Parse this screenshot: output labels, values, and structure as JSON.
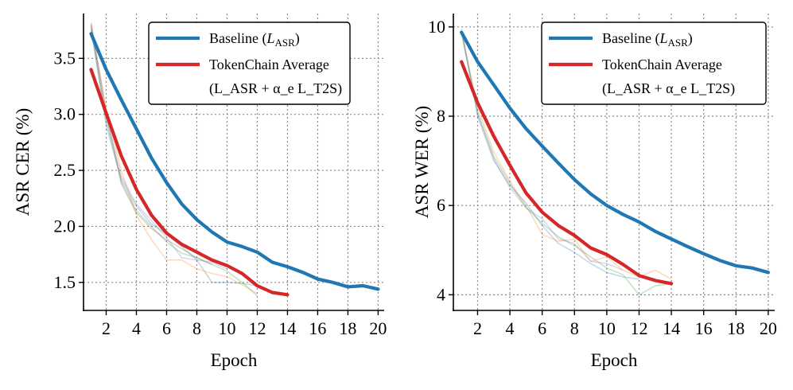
{
  "chart_data": [
    {
      "type": "line",
      "title": "",
      "xlabel": "Epoch",
      "ylabel": "ASR CER (%)",
      "xlim": [
        0.5,
        20.4
      ],
      "ylim": [
        1.25,
        3.9
      ],
      "xticks": [
        "2",
        "4",
        "6",
        "8",
        "10",
        "12",
        "14",
        "16",
        "18",
        "20"
      ],
      "xtick_values": [
        2,
        4,
        6,
        8,
        10,
        12,
        14,
        16,
        18,
        20
      ],
      "yticks": [
        "1.5",
        "2.0",
        "2.5",
        "3.0",
        "3.5"
      ],
      "ytick_values": [
        1.5,
        2.0,
        2.5,
        3.0,
        3.5
      ],
      "grid": true,
      "legend_position": "top-right",
      "series": [
        {
          "name": "Baseline (L_ASR)",
          "legend_main": "Baseline (",
          "legend_sym": "L",
          "legend_sub": "ASR",
          "legend_close": ")",
          "color": "#1f77b4",
          "x": [
            1,
            2,
            3,
            4,
            5,
            6,
            7,
            8,
            9,
            10,
            11,
            12,
            13,
            14,
            15,
            16,
            17,
            18,
            19,
            20
          ],
          "values": [
            3.72,
            3.4,
            3.13,
            2.87,
            2.61,
            2.39,
            2.2,
            2.06,
            1.95,
            1.86,
            1.82,
            1.77,
            1.68,
            1.64,
            1.59,
            1.53,
            1.5,
            1.46,
            1.47,
            1.44
          ]
        },
        {
          "name": "TokenChain Average (L_ASR + α_e L_T2S)",
          "legend_main": "TokenChain Average",
          "legend_line2": "(L_ASR + α_e L_T2S)",
          "color": "#d62728",
          "x": [
            1,
            2,
            3,
            4,
            5,
            6,
            7,
            8,
            9,
            10,
            11,
            12,
            13,
            14
          ],
          "values": [
            3.4,
            3.01,
            2.63,
            2.33,
            2.1,
            1.94,
            1.84,
            1.77,
            1.7,
            1.65,
            1.58,
            1.47,
            1.41,
            1.39
          ]
        }
      ],
      "faint_series": [
        {
          "color": "#1f77b4",
          "x": [
            1,
            2,
            3,
            4,
            5,
            6,
            7,
            8,
            9,
            10,
            11,
            12
          ],
          "values": [
            3.78,
            2.9,
            2.42,
            2.18,
            2.02,
            1.93,
            1.82,
            1.7,
            1.5,
            1.5,
            1.49,
            1.47
          ]
        },
        {
          "color": "#ff7f0e",
          "x": [
            1,
            2,
            3,
            4,
            5,
            6,
            7,
            8,
            9,
            10,
            11,
            12
          ],
          "values": [
            3.8,
            3.05,
            2.5,
            2.1,
            1.88,
            1.7,
            1.7,
            1.62,
            1.58,
            1.55,
            1.48,
            1.4
          ]
        },
        {
          "color": "#2ca02c",
          "x": [
            1,
            2,
            3,
            4,
            5,
            6,
            7,
            8,
            9,
            10,
            11,
            12
          ],
          "values": [
            3.76,
            2.95,
            2.4,
            2.14,
            2.0,
            1.86,
            1.76,
            1.72,
            1.66,
            1.6,
            1.5,
            1.38
          ]
        },
        {
          "color": "#9467bd",
          "x": [
            1,
            2,
            3,
            4,
            5,
            6,
            7,
            8,
            9,
            10
          ],
          "values": [
            3.8,
            2.98,
            2.45,
            2.2,
            2.05,
            1.9,
            1.72,
            1.7,
            1.68,
            1.62
          ]
        },
        {
          "color": "#8c564b",
          "x": [
            1,
            2,
            3,
            4,
            5,
            6,
            7,
            8,
            9
          ],
          "values": [
            3.82,
            3.02,
            2.38,
            2.12,
            1.98,
            1.88,
            1.8,
            1.72,
            1.66
          ]
        }
      ]
    },
    {
      "type": "line",
      "title": "",
      "xlabel": "Epoch",
      "ylabel": "ASR WER (%)",
      "xlim": [
        0.5,
        20.4
      ],
      "ylim": [
        3.65,
        10.3
      ],
      "xticks": [
        "2",
        "4",
        "6",
        "8",
        "10",
        "12",
        "14",
        "16",
        "18",
        "20"
      ],
      "xtick_values": [
        2,
        4,
        6,
        8,
        10,
        12,
        14,
        16,
        18,
        20
      ],
      "yticks": [
        "4",
        "6",
        "8",
        "10"
      ],
      "ytick_values": [
        4,
        6,
        8,
        10
      ],
      "grid": true,
      "legend_position": "top-right",
      "series": [
        {
          "name": "Baseline (L_ASR)",
          "legend_main": "Baseline (",
          "legend_sym": "L",
          "legend_sub": "ASR",
          "legend_close": ")",
          "color": "#1f77b4",
          "x": [
            1,
            2,
            3,
            4,
            5,
            6,
            7,
            8,
            9,
            10,
            11,
            12,
            13,
            14,
            15,
            16,
            17,
            18,
            19,
            20
          ],
          "values": [
            9.88,
            9.22,
            8.7,
            8.18,
            7.72,
            7.33,
            6.95,
            6.58,
            6.26,
            6.0,
            5.8,
            5.63,
            5.42,
            5.25,
            5.08,
            4.92,
            4.77,
            4.65,
            4.6,
            4.5
          ]
        },
        {
          "name": "TokenChain Average (L_ASR + α_e L_T2S)",
          "legend_main": "TokenChain Average",
          "legend_line2": "(L_ASR + α_e L_T2S)",
          "color": "#d62728",
          "x": [
            1,
            2,
            3,
            4,
            5,
            6,
            7,
            8,
            9,
            10,
            11,
            12,
            13,
            14
          ],
          "values": [
            9.22,
            8.3,
            7.55,
            6.9,
            6.28,
            5.85,
            5.55,
            5.33,
            5.05,
            4.9,
            4.68,
            4.43,
            4.32,
            4.25
          ]
        }
      ],
      "faint_series": [
        {
          "color": "#1f77b4",
          "x": [
            1,
            2,
            3,
            4,
            5,
            6,
            7,
            8,
            9,
            10,
            11,
            12
          ],
          "values": [
            9.95,
            8.0,
            7.0,
            6.45,
            6.05,
            5.55,
            5.15,
            4.95,
            4.7,
            4.5,
            4.4,
            4.35
          ]
        },
        {
          "color": "#ff7f0e",
          "x": [
            1,
            2,
            3,
            4,
            5,
            6,
            7,
            8,
            9,
            10,
            11,
            12,
            13,
            14
          ],
          "values": [
            9.9,
            8.2,
            7.2,
            6.55,
            6.0,
            5.35,
            5.2,
            5.25,
            4.75,
            4.85,
            4.55,
            4.4,
            4.55,
            4.35
          ]
        },
        {
          "color": "#2ca02c",
          "x": [
            1,
            2,
            3,
            4,
            5,
            6,
            7,
            8,
            9,
            10,
            11,
            12,
            13,
            14
          ],
          "values": [
            9.85,
            8.1,
            7.1,
            6.5,
            5.95,
            5.6,
            5.3,
            5.1,
            4.85,
            4.6,
            4.45,
            4.0,
            4.2,
            4.25
          ]
        },
        {
          "color": "#9467bd",
          "x": [
            1,
            2,
            3,
            4,
            5,
            6,
            7,
            8,
            9,
            10,
            11
          ],
          "values": [
            9.92,
            8.05,
            7.05,
            6.4,
            5.95,
            5.7,
            5.25,
            5.15,
            4.75,
            4.7,
            4.55
          ]
        }
      ]
    }
  ]
}
